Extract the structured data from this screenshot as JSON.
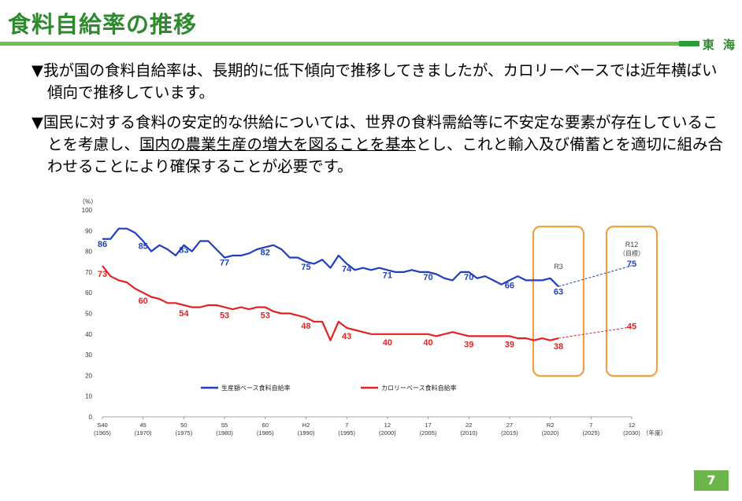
{
  "header": {
    "title": "食料自給率の推移",
    "org": "東 海",
    "accent_color": "#2e8a2e",
    "line_color": "#6cc14a"
  },
  "bullets": [
    {
      "marker": "▼",
      "text": "我が国の食料自給率は、長期的に低下傾向で推移してきましたが、カロリーベースでは近年横ばい傾向で推移しています。"
    },
    {
      "marker": "▼",
      "text_before": "国民に対する食料の安定的な供給については、世界の食料需給等に不安定な要素が存在していることを考慮し、",
      "text_underlined": "国内の農業生産の増大を図ることを基本",
      "text_after": "とし、これと輸入及び備蓄とを適切に組み合わせることにより確保することが必要です。"
    }
  ],
  "page_number": "7",
  "chart_data": {
    "type": "line",
    "y_unit_label": "（%）",
    "x_unit_label": "（年度）",
    "ylim": [
      0,
      100
    ],
    "yticks": [
      0,
      10,
      20,
      30,
      40,
      50,
      60,
      70,
      80,
      90,
      100
    ],
    "xlim": [
      1965,
      2030
    ],
    "xticks": [
      {
        "year": 1965,
        "label": "S40",
        "sub": "(1965)"
      },
      {
        "year": 1970,
        "label": "45",
        "sub": "(1970)"
      },
      {
        "year": 1975,
        "label": "50",
        "sub": "(1975)"
      },
      {
        "year": 1980,
        "label": "55",
        "sub": "(1980)"
      },
      {
        "year": 1985,
        "label": "60",
        "sub": "(1985)"
      },
      {
        "year": 1990,
        "label": "H2",
        "sub": "(1990)"
      },
      {
        "year": 1995,
        "label": "7",
        "sub": "(1995)"
      },
      {
        "year": 2000,
        "label": "12",
        "sub": "(2000)"
      },
      {
        "year": 2005,
        "label": "17",
        "sub": "(2005)"
      },
      {
        "year": 2010,
        "label": "22",
        "sub": "(2010)"
      },
      {
        "year": 2015,
        "label": "27",
        "sub": "(2015)"
      },
      {
        "year": 2020,
        "label": "R2",
        "sub": "(2020)"
      },
      {
        "year": 2025,
        "label": "7",
        "sub": "(2025)"
      },
      {
        "year": 2030,
        "label": "12",
        "sub": "(2030)"
      }
    ],
    "series": [
      {
        "name": "生産額ベース食料自給率",
        "color": "#1f3fbf",
        "x": [
          1965,
          1966,
          1967,
          1968,
          1969,
          1970,
          1971,
          1972,
          1973,
          1974,
          1975,
          1976,
          1977,
          1978,
          1979,
          1980,
          1981,
          1982,
          1983,
          1984,
          1985,
          1986,
          1987,
          1988,
          1989,
          1990,
          1991,
          1992,
          1993,
          1994,
          1995,
          1996,
          1997,
          1998,
          1999,
          2000,
          2001,
          2002,
          2003,
          2004,
          2005,
          2006,
          2007,
          2008,
          2009,
          2010,
          2011,
          2012,
          2013,
          2014,
          2015,
          2016,
          2017,
          2018,
          2019,
          2020,
          2021
        ],
        "values": [
          86,
          86,
          91,
          91,
          89,
          85,
          80,
          83,
          81,
          78,
          83,
          80,
          85,
          85,
          81,
          77,
          78,
          78,
          79,
          81,
          82,
          83,
          81,
          77,
          77,
          75,
          74,
          76,
          72,
          78,
          74,
          71,
          72,
          71,
          72,
          71,
          70,
          70,
          71,
          70,
          70,
          69,
          67,
          66,
          70,
          70,
          67,
          68,
          66,
          64,
          66,
          68,
          66,
          66,
          66,
          67,
          63
        ],
        "labels": [
          {
            "x": 1965,
            "value": 86
          },
          {
            "x": 1970,
            "value": 85
          },
          {
            "x": 1975,
            "value": 83
          },
          {
            "x": 1980,
            "value": 77
          },
          {
            "x": 1985,
            "value": 82
          },
          {
            "x": 1990,
            "value": 75
          },
          {
            "x": 1995,
            "value": 74
          },
          {
            "x": 2000,
            "value": 71
          },
          {
            "x": 2005,
            "value": 70
          },
          {
            "x": 2010,
            "value": 70
          },
          {
            "x": 2015,
            "value": 66
          },
          {
            "x": 2021,
            "value": 63
          }
        ],
        "target": {
          "x": 2030,
          "value": 75
        }
      },
      {
        "name": "カロリーベース食料自給率",
        "color": "#e32222",
        "x": [
          1965,
          1966,
          1967,
          1968,
          1969,
          1970,
          1971,
          1972,
          1973,
          1974,
          1975,
          1976,
          1977,
          1978,
          1979,
          1980,
          1981,
          1982,
          1983,
          1984,
          1985,
          1986,
          1987,
          1988,
          1989,
          1990,
          1991,
          1992,
          1993,
          1994,
          1995,
          1996,
          1997,
          1998,
          1999,
          2000,
          2001,
          2002,
          2003,
          2004,
          2005,
          2006,
          2007,
          2008,
          2009,
          2010,
          2011,
          2012,
          2013,
          2014,
          2015,
          2016,
          2017,
          2018,
          2019,
          2020,
          2021
        ],
        "values": [
          73,
          68,
          66,
          65,
          62,
          60,
          58,
          57,
          55,
          55,
          54,
          53,
          53,
          54,
          54,
          53,
          52,
          53,
          52,
          53,
          53,
          51,
          50,
          50,
          49,
          48,
          46,
          46,
          37,
          46,
          43,
          42,
          41,
          40,
          40,
          40,
          40,
          40,
          40,
          40,
          40,
          39,
          40,
          41,
          40,
          39,
          39,
          39,
          39,
          39,
          39,
          38,
          38,
          37,
          38,
          37,
          38
        ],
        "labels": [
          {
            "x": 1965,
            "value": 73
          },
          {
            "x": 1970,
            "value": 60
          },
          {
            "x": 1975,
            "value": 54
          },
          {
            "x": 1980,
            "value": 53
          },
          {
            "x": 1985,
            "value": 53
          },
          {
            "x": 1990,
            "value": 48
          },
          {
            "x": 1995,
            "value": 43
          },
          {
            "x": 2000,
            "value": 40
          },
          {
            "x": 2005,
            "value": 40
          },
          {
            "x": 2010,
            "value": 39
          },
          {
            "x": 2015,
            "value": 39
          },
          {
            "x": 2021,
            "value": 38
          }
        ],
        "target": {
          "x": 2030,
          "value": 45
        }
      }
    ],
    "annotations": [
      {
        "text": "R3",
        "x": 2021
      },
      {
        "text": "R12",
        "text2": "（目標）",
        "x": 2030
      }
    ],
    "highlight_boxes": [
      {
        "name": "r3-box",
        "x_center": 2021,
        "color": "#f0a040"
      },
      {
        "name": "r12-box",
        "x_center": 2030,
        "color": "#f0a040"
      }
    ]
  }
}
